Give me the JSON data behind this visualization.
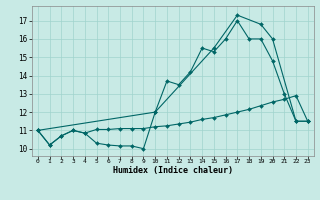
{
  "xlabel": "Humidex (Indice chaleur)",
  "bg_color": "#c8eae5",
  "line_color": "#006666",
  "grid_color": "#a0d4ce",
  "x_ticks": [
    0,
    1,
    2,
    3,
    4,
    5,
    6,
    7,
    8,
    9,
    10,
    11,
    12,
    13,
    14,
    15,
    16,
    17,
    18,
    19,
    20,
    21,
    22,
    23
  ],
  "y_ticks": [
    10,
    11,
    12,
    13,
    14,
    15,
    16,
    17
  ],
  "xlim": [
    -0.5,
    23.5
  ],
  "ylim": [
    9.6,
    17.8
  ],
  "s1_x": [
    0,
    1,
    2,
    3,
    4,
    5,
    6,
    7,
    8,
    9,
    10,
    11,
    12,
    13,
    14,
    15,
    16,
    17,
    18,
    19,
    20,
    21,
    22,
    23
  ],
  "s1_y": [
    11.0,
    10.2,
    10.7,
    11.0,
    10.85,
    10.3,
    10.2,
    10.15,
    10.15,
    10.0,
    12.0,
    13.7,
    13.5,
    14.2,
    15.5,
    15.3,
    16.0,
    17.0,
    16.0,
    16.0,
    14.8,
    13.0,
    11.5,
    11.5
  ],
  "s2_x": [
    0,
    1,
    2,
    3,
    4,
    5,
    6,
    7,
    8,
    9,
    10,
    11,
    12,
    13,
    14,
    15,
    16,
    17,
    18,
    19,
    20,
    21,
    22,
    23
  ],
  "s2_y": [
    11.0,
    10.2,
    10.7,
    11.0,
    10.85,
    11.05,
    11.05,
    11.1,
    11.1,
    11.1,
    11.2,
    11.25,
    11.35,
    11.45,
    11.6,
    11.7,
    11.85,
    12.0,
    12.15,
    12.35,
    12.55,
    12.7,
    12.9,
    11.5
  ],
  "s3_x": [
    0,
    10,
    15,
    17,
    19,
    20,
    22,
    23
  ],
  "s3_y": [
    11.0,
    12.0,
    15.5,
    17.3,
    16.8,
    16.0,
    11.5,
    11.5
  ]
}
